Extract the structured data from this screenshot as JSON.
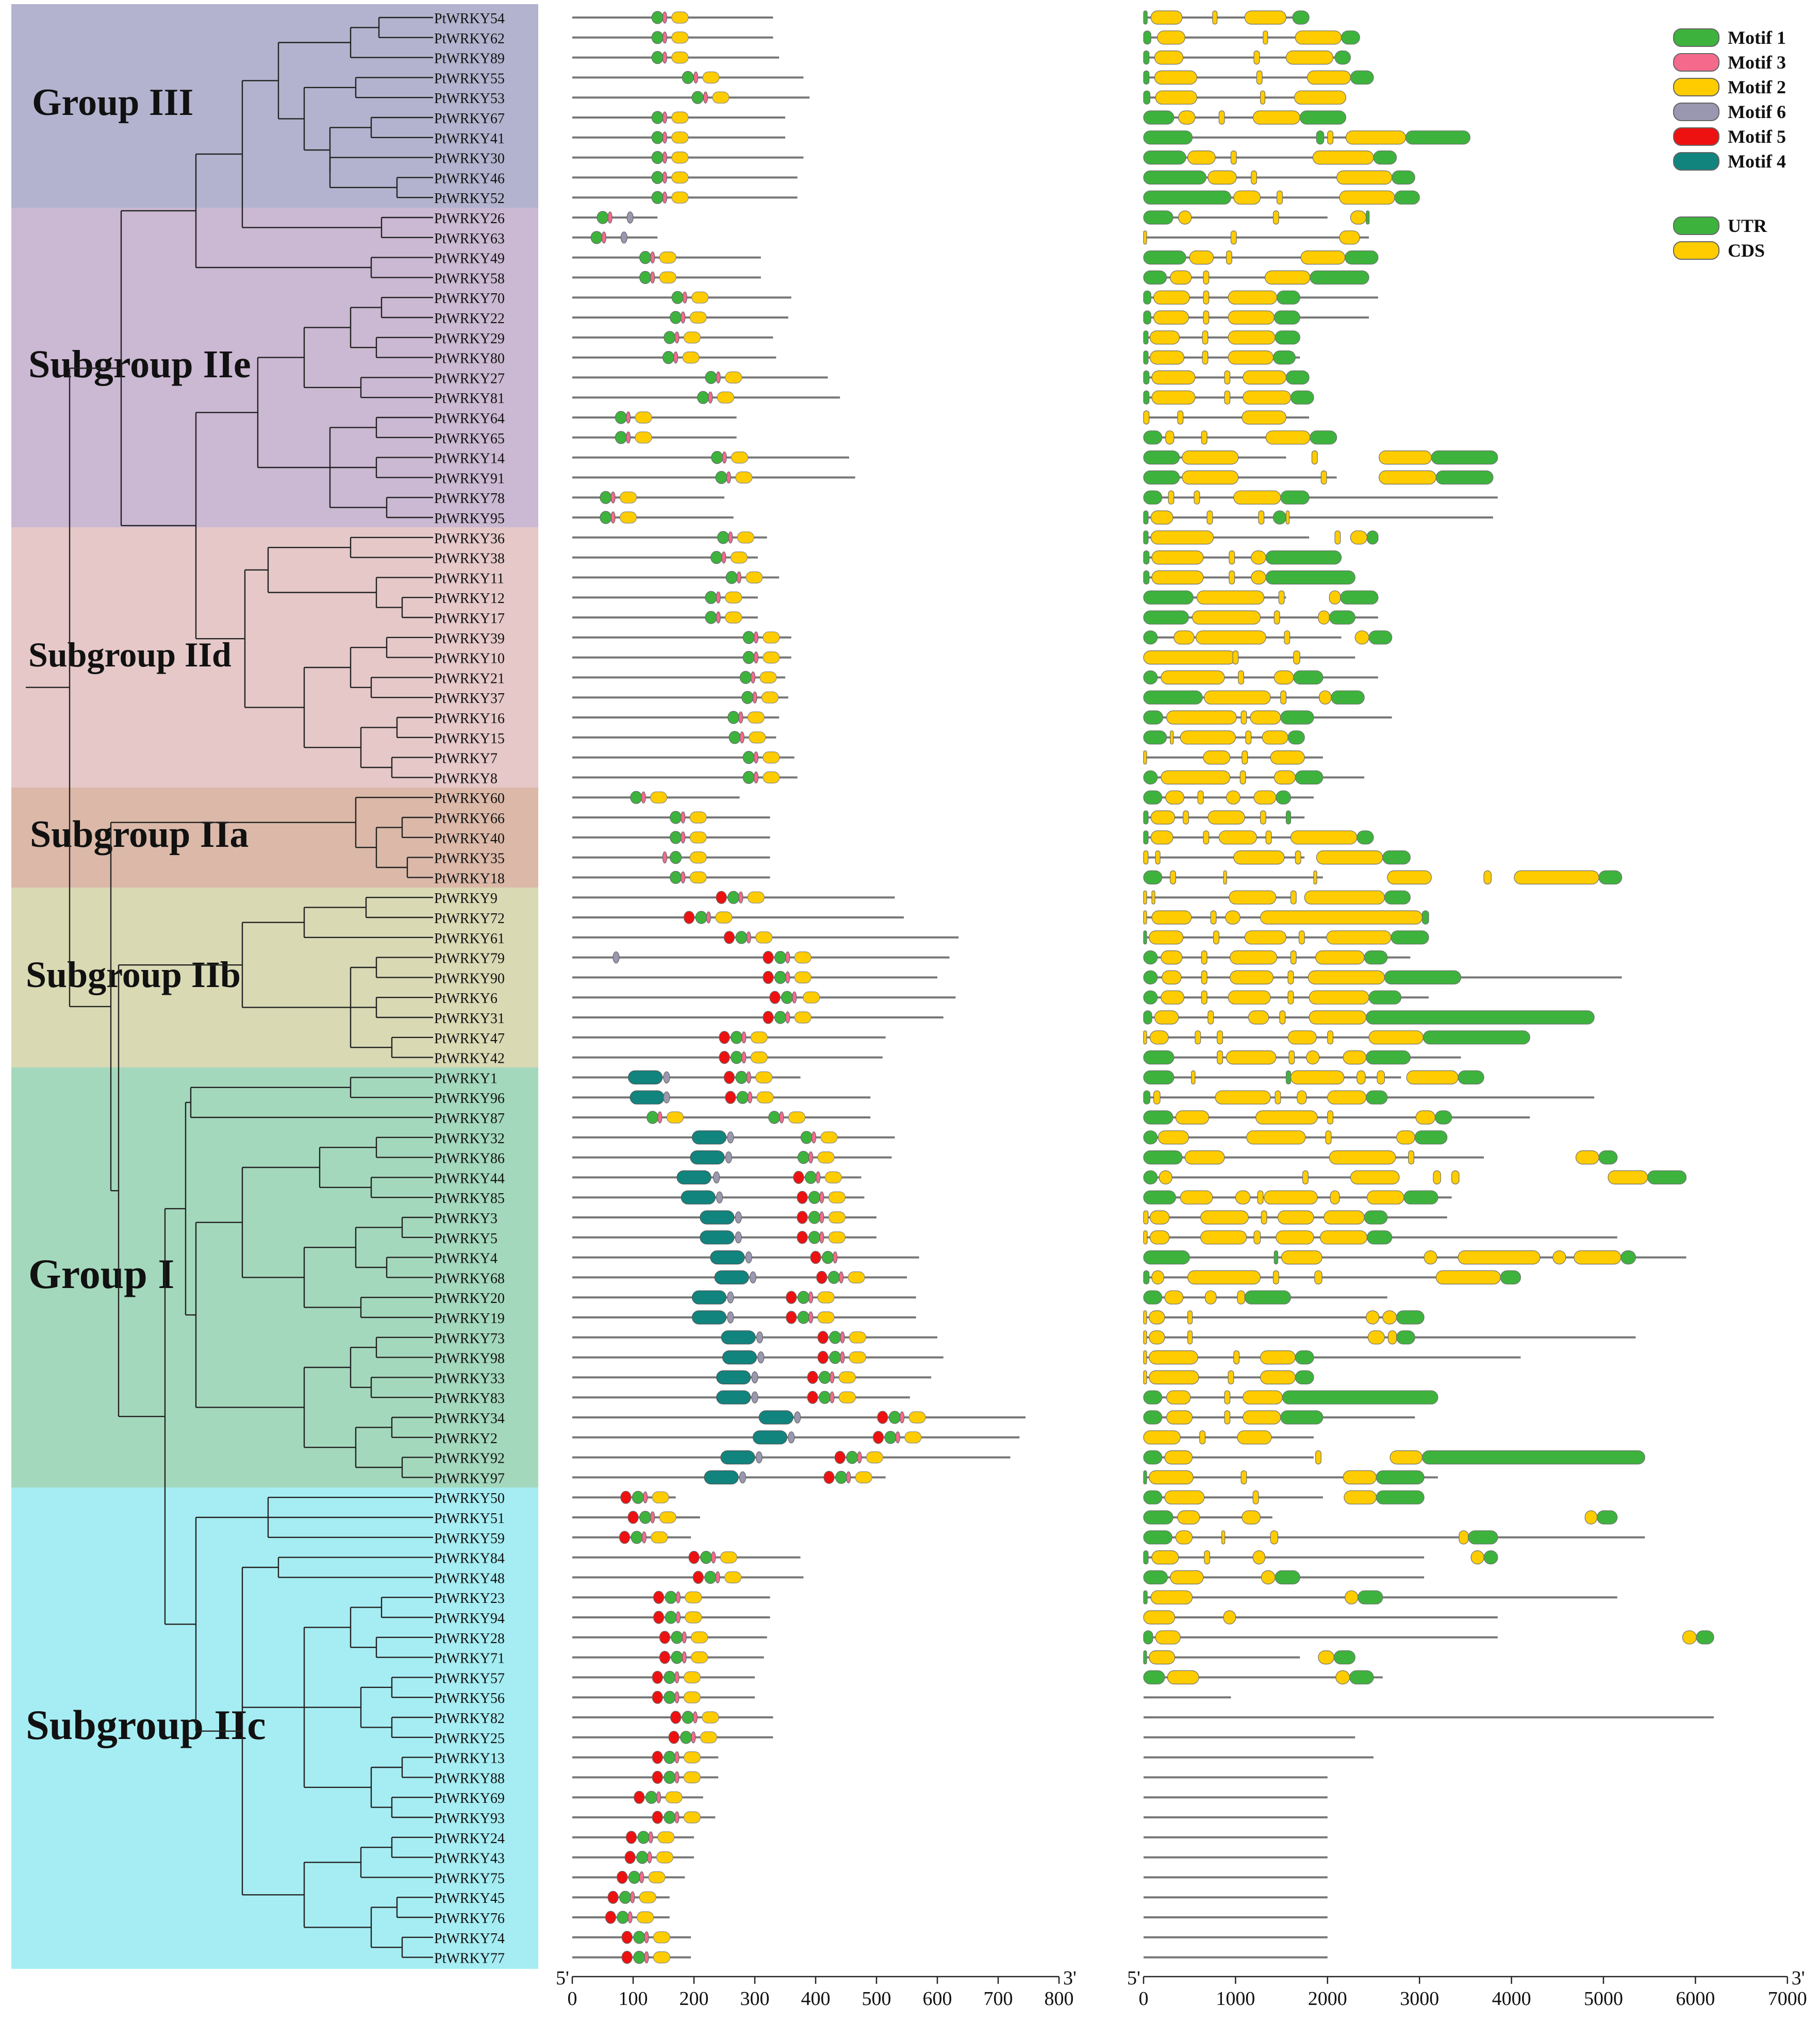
{
  "groups": [
    {
      "key": "g3",
      "label": "Group III",
      "color": "#b3b3cf"
    },
    {
      "key": "iie",
      "label": "Subgroup IIe",
      "color": "#cbb8d2"
    },
    {
      "key": "iid",
      "label": "Subgroup IId",
      "color": "#e6c8c8"
    },
    {
      "key": "iia",
      "label": "Subgroup IIa",
      "color": "#dbb8a8"
    },
    {
      "key": "iib",
      "label": "Subgroup IIb",
      "color": "#d9d9b4"
    },
    {
      "key": "g1",
      "label": "Group I",
      "color": "#a4d8bc"
    },
    {
      "key": "iic",
      "label": "Subgroup IIc",
      "color": "#a6edf3"
    }
  ],
  "genes": [
    "PtWRKY54",
    "PtWRKY62",
    "PtWRKY89",
    "PtWRKY55",
    "PtWRKY53",
    "PtWRKY67",
    "PtWRKY41",
    "PtWRKY30",
    "PtWRKY46",
    "PtWRKY52",
    "PtWRKY26",
    "PtWRKY63",
    "PtWRKY49",
    "PtWRKY58",
    "PtWRKY70",
    "PtWRKY22",
    "PtWRKY29",
    "PtWRKY80",
    "PtWRKY27",
    "PtWRKY81",
    "PtWRKY64",
    "PtWRKY65",
    "PtWRKY14",
    "PtWRKY91",
    "PtWRKY78",
    "PtWRKY95",
    "PtWRKY36",
    "PtWRKY38",
    "PtWRKY11",
    "PtWRKY12",
    "PtWRKY17",
    "PtWRKY39",
    "PtWRKY10",
    "PtWRKY21",
    "PtWRKY37",
    "PtWRKY16",
    "PtWRKY15",
    "PtWRKY7",
    "PtWRKY8",
    "PtWRKY60",
    "PtWRKY66",
    "PtWRKY40",
    "PtWRKY35",
    "PtWRKY18",
    "PtWRKY9",
    "PtWRKY72",
    "PtWRKY61",
    "PtWRKY79",
    "PtWRKY90",
    "PtWRKY6",
    "PtWRKY31",
    "PtWRKY47",
    "PtWRKY42",
    "PtWRKY1",
    "PtWRKY96",
    "PtWRKY87",
    "PtWRKY32",
    "PtWRKY86",
    "PtWRKY44",
    "PtWRKY85",
    "PtWRKY3",
    "PtWRKY5",
    "PtWRKY4",
    "PtWRKY68",
    "PtWRKY20",
    "PtWRKY19",
    "PtWRKY73",
    "PtWRKY98",
    "PtWRKY33",
    "PtWRKY83",
    "PtWRKY34",
    "PtWRKY2",
    "PtWRKY92",
    "PtWRKY97",
    "PtWRKY50",
    "PtWRKY51",
    "PtWRKY59",
    "PtWRKY84",
    "PtWRKY48",
    "PtWRKY23",
    "PtWRKY94",
    "PtWRKY28",
    "PtWRKY71",
    "PtWRKY57",
    "PtWRKY56",
    "PtWRKY82",
    "PtWRKY25",
    "PtWRKY13",
    "PtWRKY88",
    "PtWRKY69",
    "PtWRKY93",
    "PtWRKY24",
    "PtWRKY43",
    "PtWRKY75",
    "PtWRKY45",
    "PtWRKY76",
    "PtWRKY74",
    "PtWRKY77"
  ],
  "legend": {
    "motifs": [
      {
        "label": "Motif 1",
        "color": "#3db33d"
      },
      {
        "label": "Motif 3",
        "color": "#f56a8c"
      },
      {
        "label": "Motif 2",
        "color": "#ffcc00"
      },
      {
        "label": "Motif 6",
        "color": "#9a97b0"
      },
      {
        "label": "Motif 5",
        "color": "#ee1111"
      },
      {
        "label": "Motif 4",
        "color": "#11847e"
      }
    ],
    "gene_parts": [
      {
        "label": "UTR",
        "color": "#3db33d"
      },
      {
        "label": "CDS",
        "color": "#ffcc00"
      }
    ]
  },
  "motif_axis": {
    "ticks": [
      0,
      100,
      200,
      300,
      400,
      500,
      600,
      700,
      800
    ],
    "end5": "5'",
    "end3": "3'"
  },
  "gene_axis": {
    "ticks": [
      0,
      1000,
      2000,
      3000,
      4000,
      5000,
      6000,
      7000
    ],
    "end5": "5'",
    "end3": "3'"
  },
  "colors": {
    "line": "#777777",
    "tree": "#222222",
    "motif1": "#3db33d",
    "motif3": "#f56a8c",
    "motif2": "#ffcc00",
    "motif6": "#9a97b0",
    "motif5": "#ee1111",
    "motif4": "#11847e",
    "utr": "#3db33d",
    "cds": "#ffcc00"
  }
}
